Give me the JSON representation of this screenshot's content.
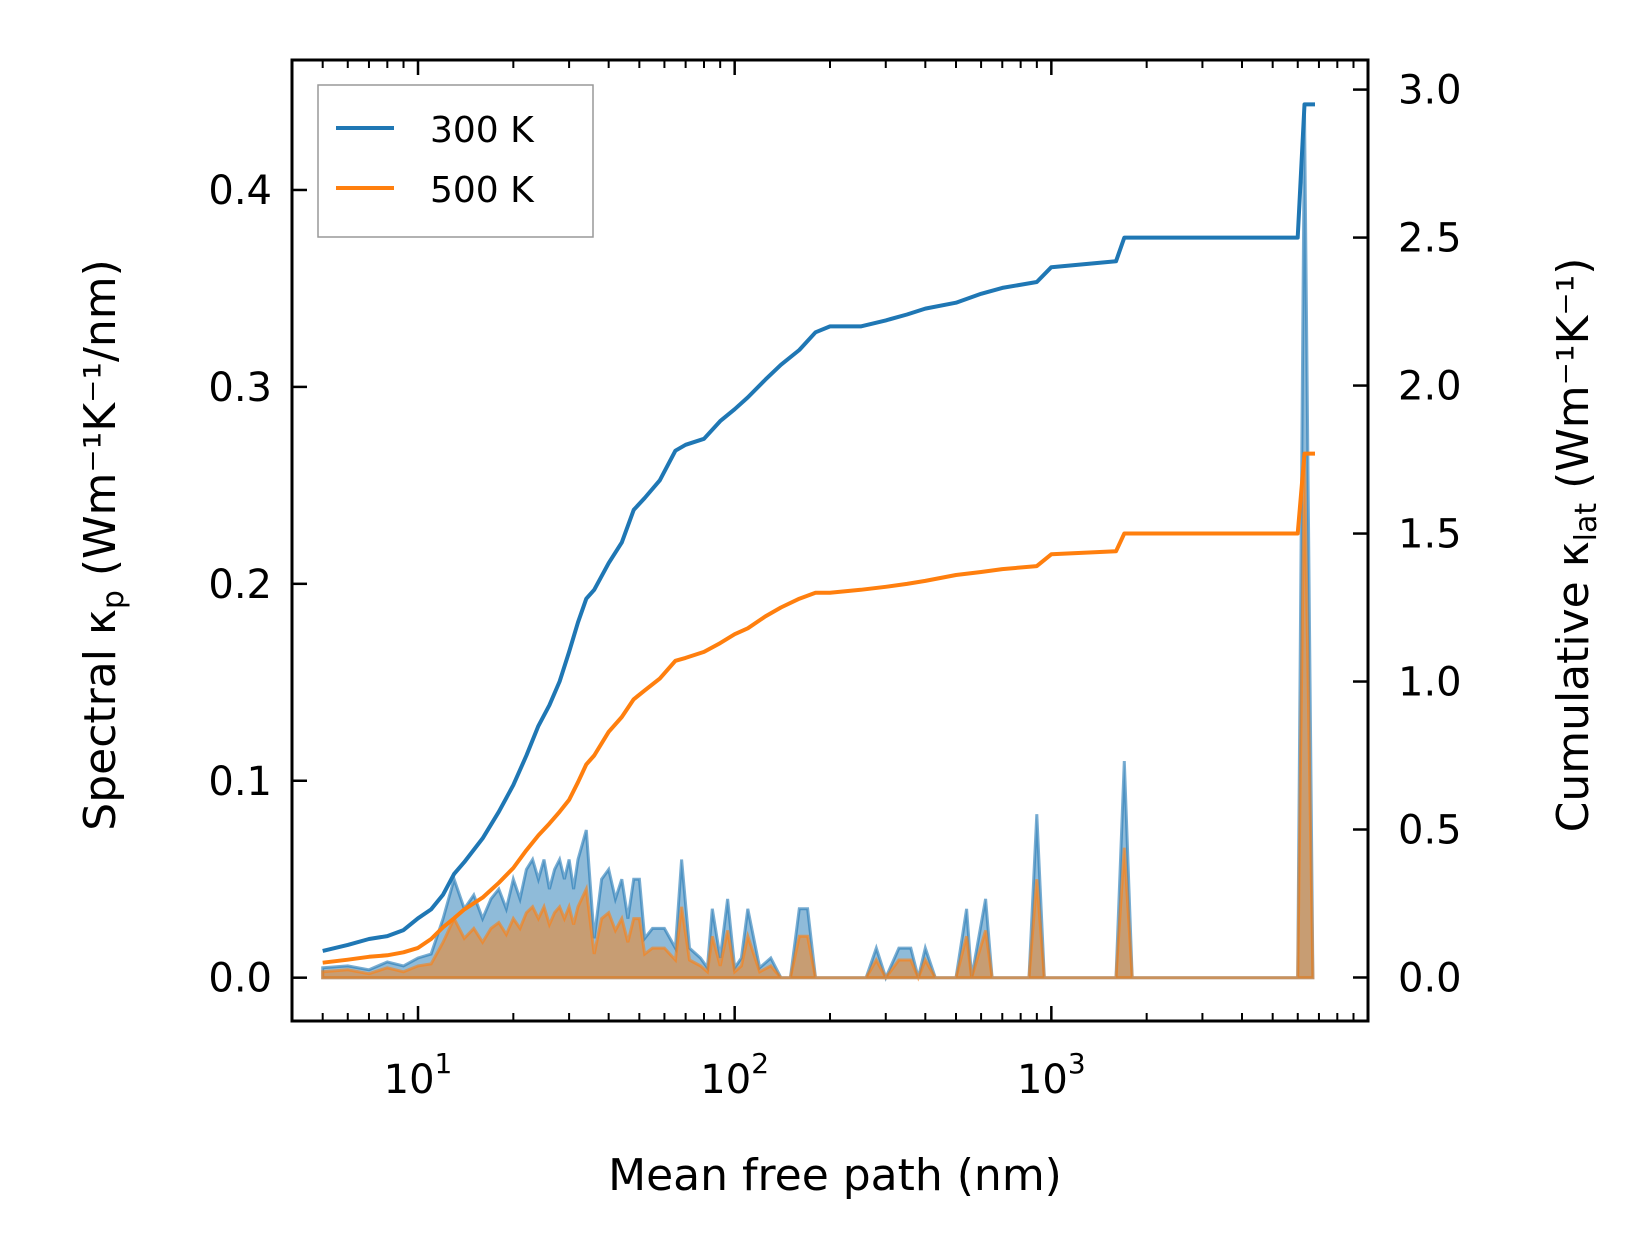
{
  "chart_data": {
    "type": "line",
    "xscale": "log",
    "xlabel": "Mean free path (nm)",
    "ylabel_left": {
      "base": "Spectral κ",
      "sub": "p",
      "unit": "(Wm⁻¹K⁻¹/nm)"
    },
    "ylabel_right": {
      "base": "Cumulative κ",
      "sub": "lat",
      "unit": "(Wm⁻¹K⁻¹)"
    },
    "xlim": [
      4,
      10000
    ],
    "ylim_left": [
      -0.022,
      0.466
    ],
    "ylim_right": [
      -0.147,
      3.1
    ],
    "x_ticks": [
      {
        "mantissa": "10",
        "exp": "1",
        "value": 10
      },
      {
        "mantissa": "10",
        "exp": "2",
        "value": 100
      },
      {
        "mantissa": "10",
        "exp": "3",
        "value": 1000
      }
    ],
    "y_ticks_left": [
      {
        "value": 0.0,
        "label": "0.0"
      },
      {
        "value": 0.1,
        "label": "0.1"
      },
      {
        "value": 0.2,
        "label": "0.2"
      },
      {
        "value": 0.3,
        "label": "0.3"
      },
      {
        "value": 0.4,
        "label": "0.4"
      }
    ],
    "y_ticks_right": [
      {
        "value": 0.0,
        "label": "0.0"
      },
      {
        "value": 0.5,
        "label": "0.5"
      },
      {
        "value": 1.0,
        "label": "1.0"
      },
      {
        "value": 1.5,
        "label": "1.5"
      },
      {
        "value": 2.0,
        "label": "2.0"
      },
      {
        "value": 2.5,
        "label": "2.5"
      },
      {
        "value": 3.0,
        "label": "3.0"
      }
    ],
    "legend": {
      "placement": "top-left",
      "entries": [
        {
          "label": "300 K",
          "color": "#1f77b4"
        },
        {
          "label": "500 K",
          "color": "#ff7f0e"
        }
      ]
    },
    "series": [
      {
        "name": "300 K",
        "color": "#1f77b4",
        "cumulative": [
          [
            5,
            0.09
          ],
          [
            6,
            0.11
          ],
          [
            7,
            0.13
          ],
          [
            8,
            0.14
          ],
          [
            9,
            0.16
          ],
          [
            10,
            0.2
          ],
          [
            11,
            0.23
          ],
          [
            12,
            0.28
          ],
          [
            13,
            0.35
          ],
          [
            14,
            0.39
          ],
          [
            16,
            0.47
          ],
          [
            18,
            0.56
          ],
          [
            20,
            0.65
          ],
          [
            22,
            0.75
          ],
          [
            24,
            0.85
          ],
          [
            26,
            0.92
          ],
          [
            28,
            1.0
          ],
          [
            30,
            1.1
          ],
          [
            32,
            1.2
          ],
          [
            34,
            1.28
          ],
          [
            36,
            1.31
          ],
          [
            40,
            1.4
          ],
          [
            44,
            1.47
          ],
          [
            48,
            1.58
          ],
          [
            52,
            1.62
          ],
          [
            58,
            1.68
          ],
          [
            65,
            1.78
          ],
          [
            70,
            1.8
          ],
          [
            80,
            1.82
          ],
          [
            90,
            1.88
          ],
          [
            100,
            1.92
          ],
          [
            110,
            1.96
          ],
          [
            125,
            2.02
          ],
          [
            140,
            2.07
          ],
          [
            160,
            2.12
          ],
          [
            180,
            2.18
          ],
          [
            200,
            2.2
          ],
          [
            250,
            2.2
          ],
          [
            300,
            2.22
          ],
          [
            350,
            2.24
          ],
          [
            400,
            2.26
          ],
          [
            500,
            2.28
          ],
          [
            600,
            2.31
          ],
          [
            700,
            2.33
          ],
          [
            900,
            2.35
          ],
          [
            1000,
            2.4
          ],
          [
            1600,
            2.42
          ],
          [
            1700,
            2.5
          ],
          [
            6000,
            2.5
          ],
          [
            6300,
            2.95
          ],
          [
            6800,
            2.95
          ]
        ],
        "spectral": [
          [
            5,
            0.005
          ],
          [
            6,
            0.006
          ],
          [
            7,
            0.004
          ],
          [
            8,
            0.008
          ],
          [
            9,
            0.006
          ],
          [
            10,
            0.01
          ],
          [
            11,
            0.012
          ],
          [
            12,
            0.03
          ],
          [
            13,
            0.05
          ],
          [
            14,
            0.035
          ],
          [
            15,
            0.042
          ],
          [
            16,
            0.03
          ],
          [
            17,
            0.04
          ],
          [
            18,
            0.045
          ],
          [
            19,
            0.035
          ],
          [
            20,
            0.05
          ],
          [
            21,
            0.04
          ],
          [
            22,
            0.055
          ],
          [
            23,
            0.06
          ],
          [
            24,
            0.05
          ],
          [
            25,
            0.06
          ],
          [
            26,
            0.045
          ],
          [
            27,
            0.055
          ],
          [
            28,
            0.06
          ],
          [
            29,
            0.05
          ],
          [
            30,
            0.06
          ],
          [
            31,
            0.045
          ],
          [
            32,
            0.06
          ],
          [
            34,
            0.075
          ],
          [
            36,
            0.02
          ],
          [
            38,
            0.05
          ],
          [
            40,
            0.055
          ],
          [
            42,
            0.04
          ],
          [
            44,
            0.05
          ],
          [
            46,
            0.03
          ],
          [
            48,
            0.05
          ],
          [
            50,
            0.05
          ],
          [
            52,
            0.02
          ],
          [
            55,
            0.025
          ],
          [
            60,
            0.025
          ],
          [
            65,
            0.015
          ],
          [
            68,
            0.06
          ],
          [
            72,
            0.015
          ],
          [
            78,
            0.01
          ],
          [
            82,
            0.005
          ],
          [
            85,
            0.035
          ],
          [
            90,
            0.01
          ],
          [
            95,
            0.04
          ],
          [
            100,
            0.005
          ],
          [
            105,
            0.01
          ],
          [
            110,
            0.035
          ],
          [
            120,
            0.005
          ],
          [
            130,
            0.01
          ],
          [
            140,
            0.0
          ],
          [
            150,
            0.0
          ],
          [
            160,
            0.035
          ],
          [
            170,
            0.035
          ],
          [
            180,
            0.0
          ],
          [
            260,
            0.0
          ],
          [
            280,
            0.015
          ],
          [
            300,
            0.0
          ],
          [
            330,
            0.015
          ],
          [
            360,
            0.015
          ],
          [
            380,
            0.0
          ],
          [
            400,
            0.015
          ],
          [
            430,
            0.0
          ],
          [
            500,
            0.0
          ],
          [
            540,
            0.035
          ],
          [
            560,
            0.0
          ],
          [
            620,
            0.04
          ],
          [
            650,
            0.0
          ],
          [
            850,
            0.0
          ],
          [
            900,
            0.083
          ],
          [
            950,
            0.0
          ],
          [
            1600,
            0.0
          ],
          [
            1700,
            0.11
          ],
          [
            1800,
            0.0
          ],
          [
            6000,
            0.0
          ],
          [
            6300,
            0.44
          ],
          [
            6700,
            0.0
          ]
        ]
      },
      {
        "name": "500 K",
        "color": "#ff7f0e",
        "cumulative": [
          [
            5,
            0.05
          ],
          [
            6,
            0.06
          ],
          [
            7,
            0.07
          ],
          [
            8,
            0.075
          ],
          [
            9,
            0.085
          ],
          [
            10,
            0.1
          ],
          [
            11,
            0.13
          ],
          [
            12,
            0.17
          ],
          [
            13,
            0.2
          ],
          [
            14,
            0.23
          ],
          [
            16,
            0.27
          ],
          [
            18,
            0.32
          ],
          [
            20,
            0.37
          ],
          [
            22,
            0.43
          ],
          [
            24,
            0.48
          ],
          [
            26,
            0.52
          ],
          [
            28,
            0.56
          ],
          [
            30,
            0.6
          ],
          [
            32,
            0.66
          ],
          [
            34,
            0.72
          ],
          [
            36,
            0.75
          ],
          [
            40,
            0.83
          ],
          [
            44,
            0.88
          ],
          [
            48,
            0.94
          ],
          [
            52,
            0.97
          ],
          [
            58,
            1.01
          ],
          [
            65,
            1.07
          ],
          [
            70,
            1.08
          ],
          [
            80,
            1.1
          ],
          [
            90,
            1.13
          ],
          [
            100,
            1.16
          ],
          [
            110,
            1.18
          ],
          [
            125,
            1.22
          ],
          [
            140,
            1.25
          ],
          [
            160,
            1.28
          ],
          [
            180,
            1.3
          ],
          [
            200,
            1.3
          ],
          [
            250,
            1.31
          ],
          [
            300,
            1.32
          ],
          [
            350,
            1.33
          ],
          [
            400,
            1.34
          ],
          [
            500,
            1.36
          ],
          [
            600,
            1.37
          ],
          [
            700,
            1.38
          ],
          [
            900,
            1.39
          ],
          [
            1000,
            1.43
          ],
          [
            1600,
            1.44
          ],
          [
            1700,
            1.5
          ],
          [
            6000,
            1.5
          ],
          [
            6300,
            1.77
          ],
          [
            6800,
            1.77
          ]
        ],
        "spectral": [
          [
            5,
            0.003
          ],
          [
            6,
            0.004
          ],
          [
            7,
            0.002
          ],
          [
            8,
            0.005
          ],
          [
            9,
            0.003
          ],
          [
            10,
            0.006
          ],
          [
            11,
            0.007
          ],
          [
            12,
            0.018
          ],
          [
            13,
            0.03
          ],
          [
            14,
            0.02
          ],
          [
            15,
            0.025
          ],
          [
            16,
            0.018
          ],
          [
            17,
            0.025
          ],
          [
            18,
            0.028
          ],
          [
            19,
            0.022
          ],
          [
            20,
            0.03
          ],
          [
            21,
            0.025
          ],
          [
            22,
            0.033
          ],
          [
            23,
            0.036
          ],
          [
            24,
            0.03
          ],
          [
            25,
            0.036
          ],
          [
            26,
            0.027
          ],
          [
            27,
            0.033
          ],
          [
            28,
            0.036
          ],
          [
            29,
            0.03
          ],
          [
            30,
            0.036
          ],
          [
            31,
            0.027
          ],
          [
            32,
            0.036
          ],
          [
            34,
            0.045
          ],
          [
            36,
            0.012
          ],
          [
            38,
            0.03
          ],
          [
            40,
            0.033
          ],
          [
            42,
            0.024
          ],
          [
            44,
            0.03
          ],
          [
            46,
            0.018
          ],
          [
            48,
            0.03
          ],
          [
            50,
            0.03
          ],
          [
            52,
            0.012
          ],
          [
            55,
            0.015
          ],
          [
            60,
            0.015
          ],
          [
            65,
            0.009
          ],
          [
            68,
            0.036
          ],
          [
            72,
            0.009
          ],
          [
            78,
            0.006
          ],
          [
            82,
            0.003
          ],
          [
            85,
            0.021
          ],
          [
            90,
            0.006
          ],
          [
            95,
            0.024
          ],
          [
            100,
            0.003
          ],
          [
            105,
            0.006
          ],
          [
            110,
            0.021
          ],
          [
            120,
            0.003
          ],
          [
            130,
            0.006
          ],
          [
            140,
            0.0
          ],
          [
            150,
            0.0
          ],
          [
            160,
            0.021
          ],
          [
            170,
            0.021
          ],
          [
            180,
            0.0
          ],
          [
            260,
            0.0
          ],
          [
            280,
            0.009
          ],
          [
            300,
            0.0
          ],
          [
            330,
            0.009
          ],
          [
            360,
            0.009
          ],
          [
            380,
            0.0
          ],
          [
            400,
            0.009
          ],
          [
            430,
            0.0
          ],
          [
            500,
            0.0
          ],
          [
            540,
            0.021
          ],
          [
            560,
            0.0
          ],
          [
            620,
            0.024
          ],
          [
            650,
            0.0
          ],
          [
            850,
            0.0
          ],
          [
            900,
            0.05
          ],
          [
            950,
            0.0
          ],
          [
            1600,
            0.0
          ],
          [
            1700,
            0.066
          ],
          [
            1800,
            0.0
          ],
          [
            6000,
            0.0
          ],
          [
            6300,
            0.265
          ],
          [
            6700,
            0.0
          ]
        ]
      }
    ]
  }
}
